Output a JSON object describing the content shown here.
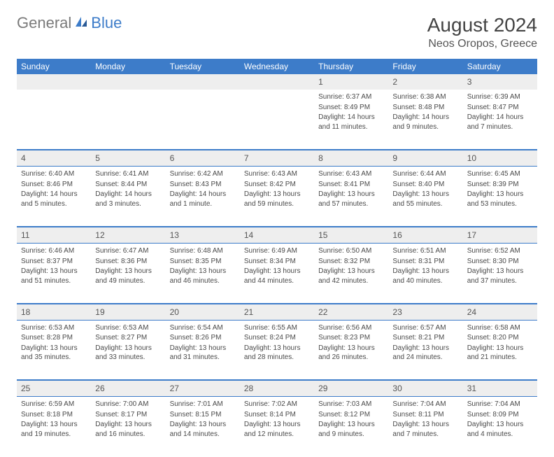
{
  "logo": {
    "part1": "General",
    "part2": "Blue"
  },
  "title": "August 2024",
  "location": "Neos Oropos, Greece",
  "colors": {
    "header_bg": "#3d7cc9",
    "header_text": "#ffffff",
    "daynum_bg": "#eeeeee",
    "border": "#3d7cc9",
    "body_text": "#4a4a4a",
    "title_text": "#444444"
  },
  "day_headers": [
    "Sunday",
    "Monday",
    "Tuesday",
    "Wednesday",
    "Thursday",
    "Friday",
    "Saturday"
  ],
  "weeks": [
    {
      "nums": [
        "",
        "",
        "",
        "",
        "1",
        "2",
        "3"
      ],
      "cells": [
        null,
        null,
        null,
        null,
        {
          "sunrise": "6:37 AM",
          "sunset": "8:49 PM",
          "daylight": "14 hours and 11 minutes."
        },
        {
          "sunrise": "6:38 AM",
          "sunset": "8:48 PM",
          "daylight": "14 hours and 9 minutes."
        },
        {
          "sunrise": "6:39 AM",
          "sunset": "8:47 PM",
          "daylight": "14 hours and 7 minutes."
        }
      ]
    },
    {
      "nums": [
        "4",
        "5",
        "6",
        "7",
        "8",
        "9",
        "10"
      ],
      "cells": [
        {
          "sunrise": "6:40 AM",
          "sunset": "8:46 PM",
          "daylight": "14 hours and 5 minutes."
        },
        {
          "sunrise": "6:41 AM",
          "sunset": "8:44 PM",
          "daylight": "14 hours and 3 minutes."
        },
        {
          "sunrise": "6:42 AM",
          "sunset": "8:43 PM",
          "daylight": "14 hours and 1 minute."
        },
        {
          "sunrise": "6:43 AM",
          "sunset": "8:42 PM",
          "daylight": "13 hours and 59 minutes."
        },
        {
          "sunrise": "6:43 AM",
          "sunset": "8:41 PM",
          "daylight": "13 hours and 57 minutes."
        },
        {
          "sunrise": "6:44 AM",
          "sunset": "8:40 PM",
          "daylight": "13 hours and 55 minutes."
        },
        {
          "sunrise": "6:45 AM",
          "sunset": "8:39 PM",
          "daylight": "13 hours and 53 minutes."
        }
      ]
    },
    {
      "nums": [
        "11",
        "12",
        "13",
        "14",
        "15",
        "16",
        "17"
      ],
      "cells": [
        {
          "sunrise": "6:46 AM",
          "sunset": "8:37 PM",
          "daylight": "13 hours and 51 minutes."
        },
        {
          "sunrise": "6:47 AM",
          "sunset": "8:36 PM",
          "daylight": "13 hours and 49 minutes."
        },
        {
          "sunrise": "6:48 AM",
          "sunset": "8:35 PM",
          "daylight": "13 hours and 46 minutes."
        },
        {
          "sunrise": "6:49 AM",
          "sunset": "8:34 PM",
          "daylight": "13 hours and 44 minutes."
        },
        {
          "sunrise": "6:50 AM",
          "sunset": "8:32 PM",
          "daylight": "13 hours and 42 minutes."
        },
        {
          "sunrise": "6:51 AM",
          "sunset": "8:31 PM",
          "daylight": "13 hours and 40 minutes."
        },
        {
          "sunrise": "6:52 AM",
          "sunset": "8:30 PM",
          "daylight": "13 hours and 37 minutes."
        }
      ]
    },
    {
      "nums": [
        "18",
        "19",
        "20",
        "21",
        "22",
        "23",
        "24"
      ],
      "cells": [
        {
          "sunrise": "6:53 AM",
          "sunset": "8:28 PM",
          "daylight": "13 hours and 35 minutes."
        },
        {
          "sunrise": "6:53 AM",
          "sunset": "8:27 PM",
          "daylight": "13 hours and 33 minutes."
        },
        {
          "sunrise": "6:54 AM",
          "sunset": "8:26 PM",
          "daylight": "13 hours and 31 minutes."
        },
        {
          "sunrise": "6:55 AM",
          "sunset": "8:24 PM",
          "daylight": "13 hours and 28 minutes."
        },
        {
          "sunrise": "6:56 AM",
          "sunset": "8:23 PM",
          "daylight": "13 hours and 26 minutes."
        },
        {
          "sunrise": "6:57 AM",
          "sunset": "8:21 PM",
          "daylight": "13 hours and 24 minutes."
        },
        {
          "sunrise": "6:58 AM",
          "sunset": "8:20 PM",
          "daylight": "13 hours and 21 minutes."
        }
      ]
    },
    {
      "nums": [
        "25",
        "26",
        "27",
        "28",
        "29",
        "30",
        "31"
      ],
      "cells": [
        {
          "sunrise": "6:59 AM",
          "sunset": "8:18 PM",
          "daylight": "13 hours and 19 minutes."
        },
        {
          "sunrise": "7:00 AM",
          "sunset": "8:17 PM",
          "daylight": "13 hours and 16 minutes."
        },
        {
          "sunrise": "7:01 AM",
          "sunset": "8:15 PM",
          "daylight": "13 hours and 14 minutes."
        },
        {
          "sunrise": "7:02 AM",
          "sunset": "8:14 PM",
          "daylight": "13 hours and 12 minutes."
        },
        {
          "sunrise": "7:03 AM",
          "sunset": "8:12 PM",
          "daylight": "13 hours and 9 minutes."
        },
        {
          "sunrise": "7:04 AM",
          "sunset": "8:11 PM",
          "daylight": "13 hours and 7 minutes."
        },
        {
          "sunrise": "7:04 AM",
          "sunset": "8:09 PM",
          "daylight": "13 hours and 4 minutes."
        }
      ]
    }
  ],
  "labels": {
    "sunrise": "Sunrise:",
    "sunset": "Sunset:",
    "daylight": "Daylight:"
  }
}
